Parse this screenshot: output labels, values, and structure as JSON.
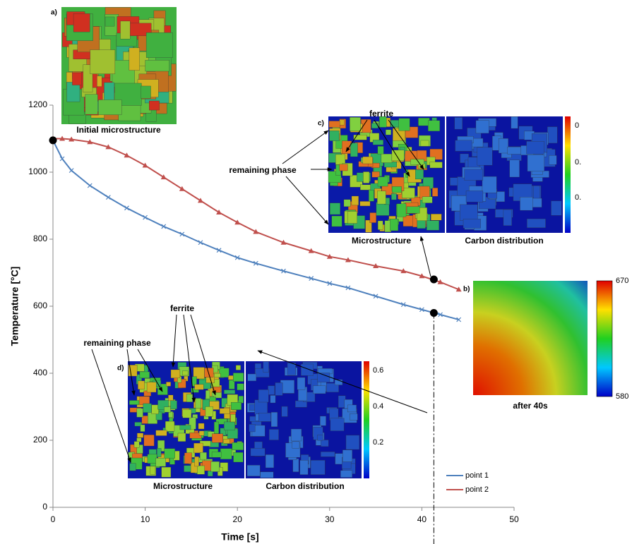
{
  "chart_data": {
    "type": "line",
    "xlabel": "Time [s]",
    "ylabel": "Temperature [°C]",
    "x": [
      0,
      1,
      2,
      4,
      6,
      8,
      10,
      12,
      14,
      16,
      18,
      20,
      22,
      25,
      28,
      30,
      32,
      35,
      38,
      40,
      42,
      44
    ],
    "series": [
      {
        "name": "point 1",
        "color": "#4f81bd",
        "values": [
          1095,
          1040,
          1005,
          960,
          925,
          893,
          865,
          838,
          815,
          790,
          767,
          745,
          728,
          705,
          683,
          668,
          655,
          630,
          605,
          590,
          575,
          560
        ]
      },
      {
        "name": "point 2",
        "color": "#c0504d",
        "values": [
          1100,
          1100,
          1098,
          1090,
          1075,
          1050,
          1020,
          985,
          950,
          915,
          880,
          850,
          822,
          790,
          765,
          748,
          738,
          720,
          705,
          690,
          672,
          650
        ]
      }
    ],
    "xlim": [
      0,
      50
    ],
    "xticks": [
      0,
      10,
      20,
      30,
      40,
      50
    ],
    "ylim": [
      0,
      1200
    ],
    "yticks": [
      0,
      200,
      400,
      600,
      800,
      1000,
      1200
    ],
    "markers": [
      {
        "x": 0,
        "y": 1095
      },
      {
        "x": 41.3,
        "y": 680
      },
      {
        "x": 41.3,
        "y": 580
      }
    ],
    "insets": {
      "a": {
        "label": "a)",
        "caption": "Initial microstructure"
      },
      "b": {
        "label": "b)",
        "caption": "after 40s",
        "colorbar": [
          670,
          580
        ]
      },
      "c": {
        "label": "c)",
        "ferrite": "ferrite",
        "remaining": "remaining phase",
        "captions": [
          "Microstructure",
          "Carbon distribution"
        ],
        "colorbar": [
          "0",
          "0.",
          "0."
        ]
      },
      "d": {
        "label": "d)",
        "ferrite": "ferrite",
        "remaining": "remaining phase",
        "captions": [
          "Microstructure",
          "Carbon distribution"
        ],
        "colorbar": [
          0.6,
          0.4,
          0.2
        ]
      }
    },
    "legend": "lower right"
  }
}
